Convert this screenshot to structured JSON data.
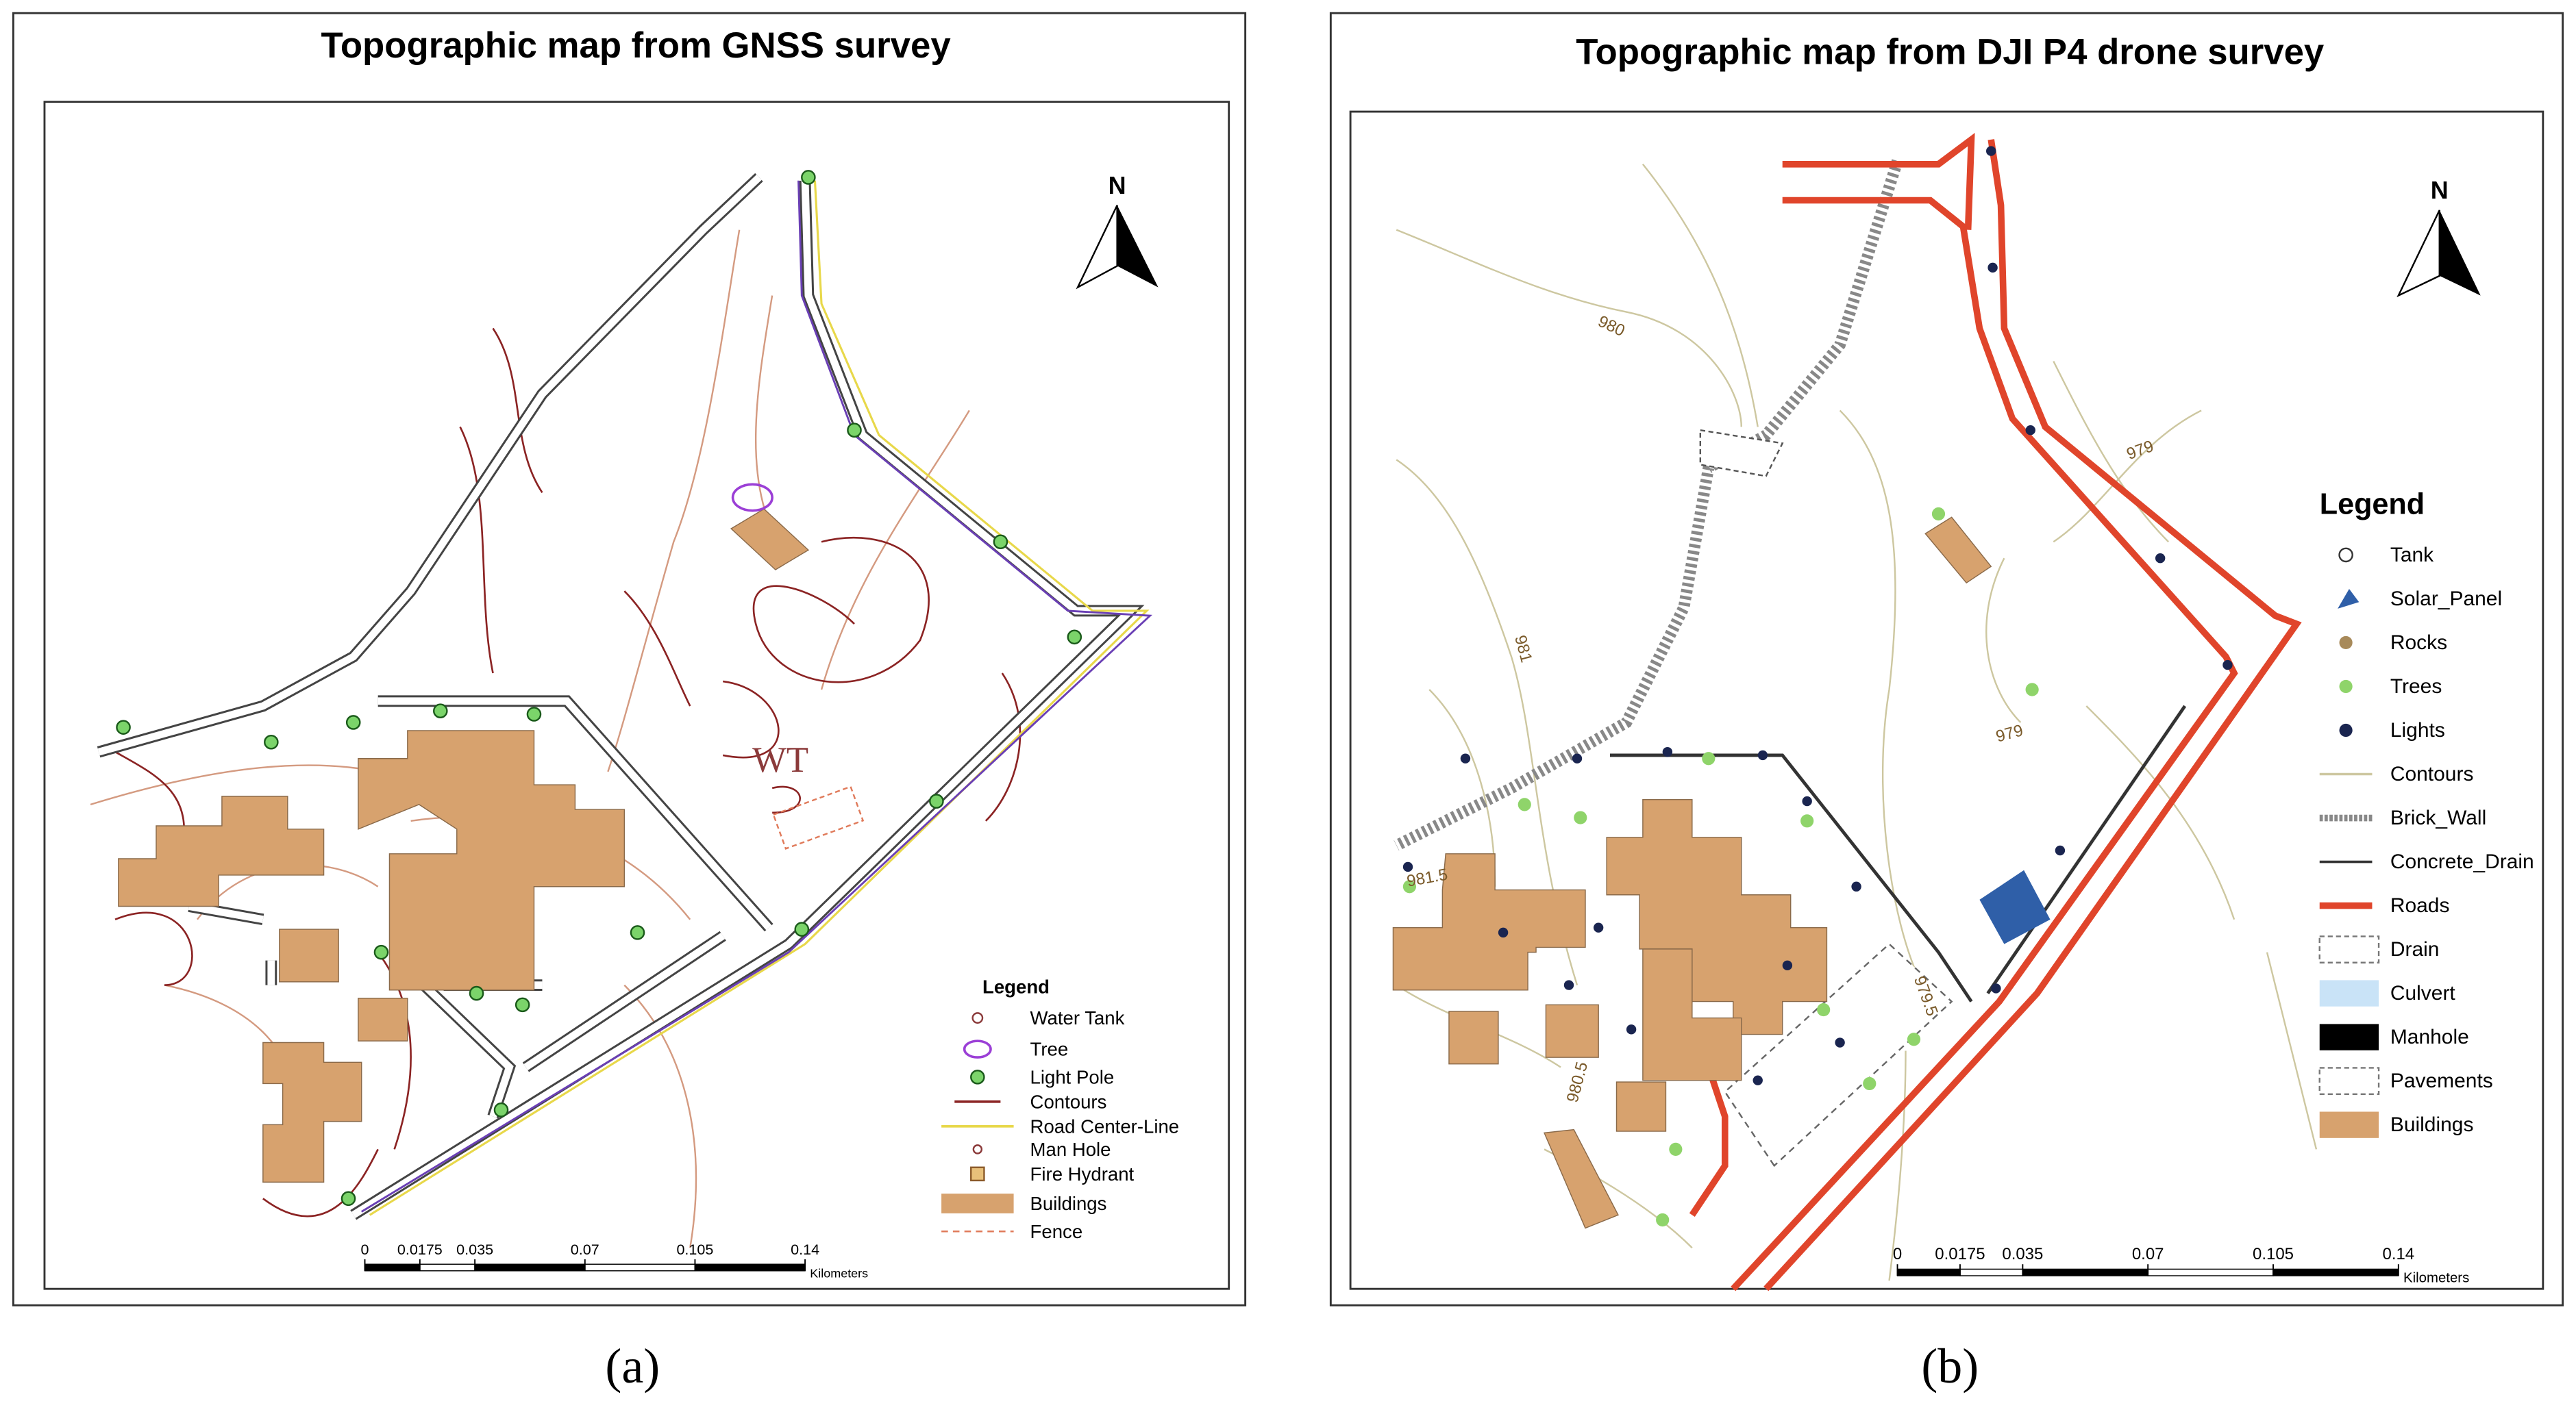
{
  "panels": [
    {
      "label": "(a)",
      "title": "Topographic map from GNSS survey",
      "north": "N",
      "map_labels": [
        "WT"
      ],
      "legend": {
        "title": "Legend",
        "items": [
          "Water Tank",
          "Tree",
          "Light Pole",
          "Contours",
          "Road Center-Line",
          "Man Hole",
          "Fire Hydrant",
          "Buildings",
          "Fence"
        ]
      },
      "scale": {
        "ticks": [
          0,
          0.0175,
          0.035,
          0.07,
          0.105,
          0.14
        ],
        "unit": "Kilometers"
      }
    },
    {
      "label": "(b)",
      "title": "Topographic map from DJI P4 drone survey",
      "north": "N",
      "contour_labels": [
        980,
        981,
        979,
        979,
        981.5,
        979.5,
        980.5
      ],
      "legend": {
        "title": "Legend",
        "items": [
          "Tank",
          "Solar_Panel",
          "Rocks",
          "Trees",
          "Lights",
          "Contours",
          "Brick_Wall",
          "Concrete_Drain",
          "Roads",
          "Drain",
          "Culvert",
          "Manhole",
          "Pavements",
          "Buildings"
        ]
      },
      "scale": {
        "ticks": [
          0,
          0.0175,
          0.035,
          0.07,
          0.105,
          0.14
        ],
        "unit": "Kilometers"
      }
    }
  ]
}
